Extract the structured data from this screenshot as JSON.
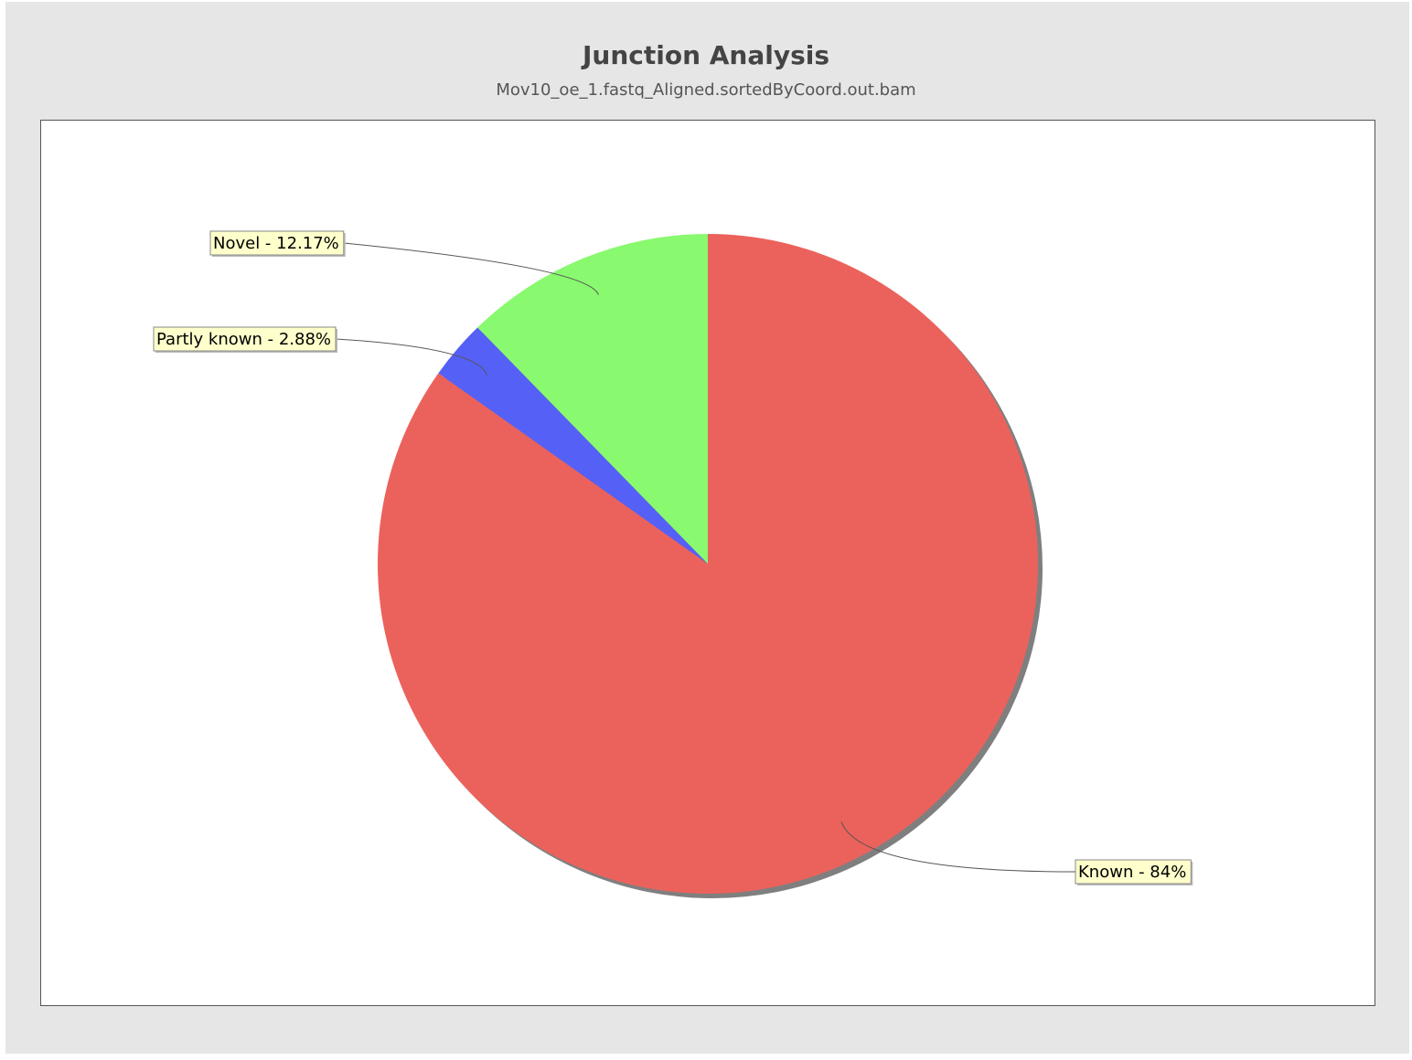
{
  "chart_data": {
    "type": "pie",
    "title": "Junction Analysis",
    "subtitle": "Mov10_oe_1.fastq_Aligned.sortedByCoord.out.bam",
    "slices": [
      {
        "label": "Known",
        "value": 84.0,
        "display": "Known - 84%",
        "color": "#eb625c"
      },
      {
        "label": "Partly known",
        "value": 2.88,
        "display": "Partly known - 2.88%",
        "color": "#5560f7"
      },
      {
        "label": "Novel",
        "value": 12.17,
        "display": "Novel - 12.17%",
        "color": "#89f96f"
      }
    ],
    "start_angle": "12 o'clock",
    "direction": "clockwise",
    "legend": "none",
    "label_style": "callout boxes with leader lines"
  },
  "colors": {
    "background": "#e6e6e6",
    "plot_background": "#ffffff",
    "label_box_fill": "#ffffcc",
    "label_box_border": "#888888",
    "leader_line": "#555555",
    "shadow": "#7f7f7f"
  }
}
